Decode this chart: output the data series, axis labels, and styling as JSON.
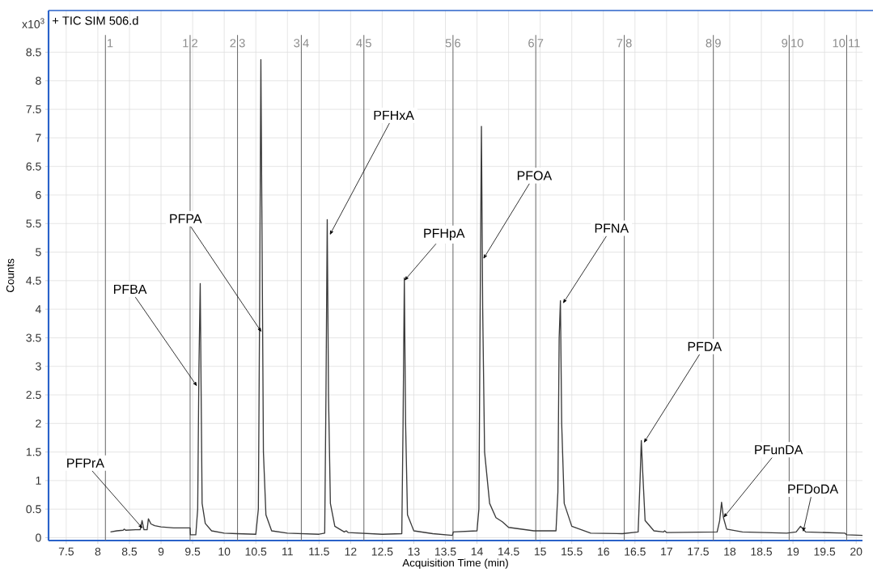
{
  "chart_data": {
    "type": "line",
    "title": "+ TIC SIM 506.d",
    "xlabel": "Acquisition Time (min)",
    "ylabel": "Counts",
    "subtitle": "x10$^{3}$",
    "series": [
      {
        "color": "#3a3a3a",
        "x": [
          8.2,
          8.3,
          8.4,
          8.42,
          8.44,
          8.6,
          8.67,
          8.7,
          8.73,
          8.78,
          8.8,
          8.84,
          8.9,
          9.0,
          9.2,
          9.46,
          9.465,
          9.55,
          9.58,
          9.6,
          9.62,
          9.635,
          9.65,
          9.7,
          9.8,
          10.0,
          10.2,
          10.5,
          10.54,
          10.56,
          10.58,
          10.6,
          10.62,
          10.66,
          10.75,
          11.0,
          11.5,
          11.59,
          11.61,
          11.63,
          11.65,
          11.68,
          11.75,
          11.9,
          11.93,
          11.96,
          12.5,
          12.81,
          12.83,
          12.85,
          12.87,
          12.9,
          13.0,
          13.3,
          13.61,
          13.625,
          14.0,
          14.03,
          14.05,
          14.07,
          14.09,
          14.12,
          14.2,
          14.3,
          14.4,
          14.5,
          14.9,
          15.25,
          15.28,
          15.3,
          15.32,
          15.34,
          15.38,
          15.5,
          15.8,
          16.3,
          16.55,
          16.58,
          16.6,
          16.62,
          16.66,
          16.8,
          16.95,
          16.97,
          17.0,
          17.8,
          17.84,
          17.87,
          17.9,
          17.95,
          18.2,
          18.9,
          19.05,
          19.12,
          19.2,
          19.82,
          19.85,
          20.1
        ],
        "values": [
          0.1,
          0.12,
          0.13,
          0.15,
          0.13,
          0.14,
          0.14,
          0.3,
          0.14,
          0.14,
          0.33,
          0.24,
          0.21,
          0.19,
          0.17,
          0.17,
          0.05,
          0.05,
          0.5,
          3.0,
          4.45,
          2.5,
          0.6,
          0.25,
          0.12,
          0.08,
          0.07,
          0.06,
          0.5,
          4.0,
          8.37,
          5.0,
          1.5,
          0.4,
          0.12,
          0.08,
          0.06,
          0.08,
          2.5,
          5.57,
          2.5,
          0.6,
          0.2,
          0.1,
          0.12,
          0.09,
          0.06,
          0.07,
          2.0,
          4.55,
          2.0,
          0.4,
          0.12,
          0.07,
          0.04,
          0.1,
          0.12,
          0.5,
          4.0,
          7.2,
          4.0,
          1.5,
          0.6,
          0.35,
          0.28,
          0.18,
          0.12,
          0.12,
          0.8,
          3.5,
          4.15,
          2.0,
          0.6,
          0.2,
          0.08,
          0.07,
          0.1,
          1.0,
          1.7,
          1.2,
          0.3,
          0.12,
          0.1,
          0.12,
          0.09,
          0.1,
          0.3,
          0.62,
          0.35,
          0.15,
          0.1,
          0.08,
          0.1,
          0.2,
          0.1,
          0.08,
          0.05,
          0.04
        ]
      }
    ],
    "xlim": [
      7.22,
      20.1
    ],
    "ylim": [
      -0.05,
      9.23
    ],
    "xticks": [
      7.5,
      8,
      8.5,
      9,
      9.5,
      10,
      10.5,
      11,
      11.5,
      12,
      12.5,
      13,
      13.5,
      14,
      14.5,
      15,
      15.5,
      16,
      16.5,
      17,
      17.5,
      18,
      18.5,
      19,
      19.5,
      20
    ],
    "yticks": [
      0,
      0.5,
      1,
      1.5,
      2,
      2.5,
      3,
      3.5,
      4,
      4.5,
      5,
      5.5,
      6,
      6.5,
      7,
      7.5,
      8,
      8.5
    ],
    "grid": true,
    "marker": "none",
    "line_style": "solid",
    "ref_lines": [
      {
        "axis": "x",
        "value": 8.12,
        "color": "#6e6e6e"
      },
      {
        "axis": "x",
        "value": 9.46,
        "color": "#6e6e6e"
      },
      {
        "axis": "x",
        "value": 10.21,
        "color": "#6e6e6e"
      },
      {
        "axis": "x",
        "value": 11.22,
        "color": "#6e6e6e"
      },
      {
        "axis": "x",
        "value": 12.21,
        "color": "#6e6e6e"
      },
      {
        "axis": "x",
        "value": 13.62,
        "color": "#6e6e6e"
      },
      {
        "axis": "x",
        "value": 14.93,
        "color": "#6e6e6e"
      },
      {
        "axis": "x",
        "value": 16.33,
        "color": "#6e6e6e"
      },
      {
        "axis": "x",
        "value": 17.74,
        "color": "#6e6e6e"
      },
      {
        "axis": "x",
        "value": 18.94,
        "color": "#6e6e6e"
      },
      {
        "axis": "x",
        "value": 19.85,
        "color": "#6e6e6e"
      }
    ],
    "annotations": [
      {
        "text": "PFPrA",
        "x": 8.71,
        "y": 0.16
      },
      {
        "text": "PFBA",
        "x": 9.57,
        "y": 2.65
      },
      {
        "text": "PFPA",
        "x": 10.59,
        "y": 3.6
      },
      {
        "text": "PFHxA",
        "x": 11.67,
        "y": 5.3
      },
      {
        "text": "PFHpA",
        "x": 12.85,
        "y": 4.5
      },
      {
        "text": "PFOA",
        "x": 14.1,
        "y": 4.88
      },
      {
        "text": "PFNA",
        "x": 15.36,
        "y": 4.1
      },
      {
        "text": "PFDA",
        "x": 16.64,
        "y": 1.66
      },
      {
        "text": "PFunDA",
        "x": 17.9,
        "y": 0.35
      },
      {
        "text": "PFDoDA",
        "x": 19.16,
        "y": 0.1
      },
      {
        "text": "1",
        "x": 8.12,
        "y": 8.66
      },
      {
        "text": "1",
        "x": 9.46,
        "y": 8.66
      },
      {
        "text": "2",
        "x": 9.46,
        "y": 8.66
      },
      {
        "text": "2",
        "x": 10.21,
        "y": 8.66
      },
      {
        "text": "3",
        "x": 10.21,
        "y": 8.66
      },
      {
        "text": "3",
        "x": 11.22,
        "y": 8.66
      },
      {
        "text": "4",
        "x": 11.22,
        "y": 8.66
      },
      {
        "text": "4",
        "x": 12.21,
        "y": 8.66
      },
      {
        "text": "5",
        "x": 12.21,
        "y": 8.66
      },
      {
        "text": "5",
        "x": 13.62,
        "y": 8.66
      },
      {
        "text": "6",
        "x": 13.62,
        "y": 8.66
      },
      {
        "text": "6",
        "x": 14.93,
        "y": 8.66
      },
      {
        "text": "7",
        "x": 14.93,
        "y": 8.66
      },
      {
        "text": "7",
        "x": 16.33,
        "y": 8.66
      },
      {
        "text": "8",
        "x": 16.33,
        "y": 8.66
      },
      {
        "text": "8",
        "x": 17.74,
        "y": 8.66
      },
      {
        "text": "9",
        "x": 17.74,
        "y": 8.66
      },
      {
        "text": "9",
        "x": 18.94,
        "y": 8.66
      },
      {
        "text": "10",
        "x": 18.94,
        "y": 8.66
      },
      {
        "text": "10",
        "x": 19.85,
        "y": 8.66
      },
      {
        "text": "11",
        "x": 19.85,
        "y": 8.66
      }
    ]
  }
}
